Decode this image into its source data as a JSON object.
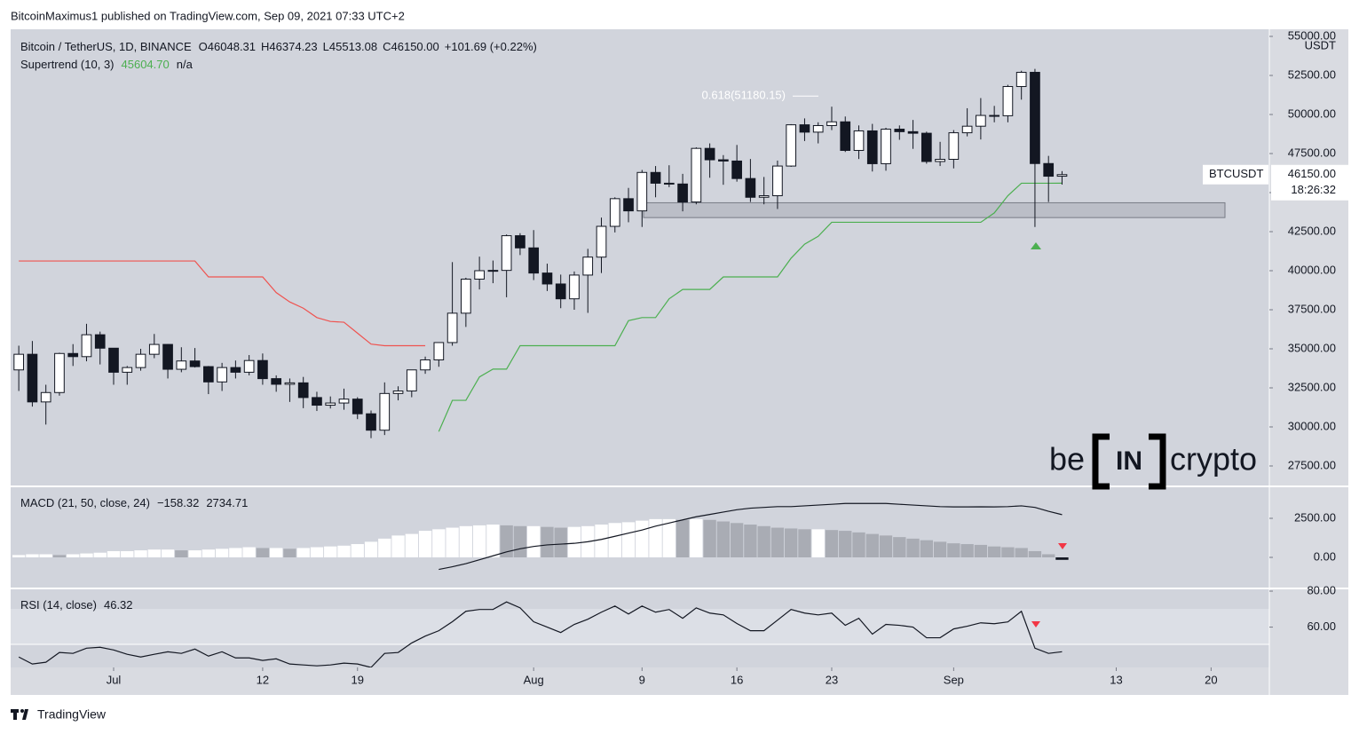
{
  "header": "BitcoinMaximus1 published on TradingView.com, Sep 09, 2021 07:33 UTC+2",
  "footer": "TradingView",
  "logo": {
    "left": "be",
    "mid": "IN",
    "right": "crypto"
  },
  "chart_data": [
    {
      "type": "candlestick",
      "title": "Bitcoin / TetherUS, 1D, BINANCE",
      "ohlc_legend": [
        {
          "label": "O",
          "value": "46048.31"
        },
        {
          "label": "H",
          "value": "46374.23"
        },
        {
          "label": "L",
          "value": "45513.08"
        },
        {
          "label": "C",
          "value": "46150.00"
        }
      ],
      "change_label": "+101.69 (+0.22%)",
      "indicator": {
        "title": "Supertrend (10, 3)",
        "value": "45604.70",
        "extra": "n/a"
      },
      "axis_unit": "USDT",
      "symbol": "BTCUSDT",
      "price_label": "46150.00",
      "countdown": "18:26:32",
      "open": [
        33650,
        34650,
        31600,
        32200,
        34700,
        34500,
        35900,
        35040,
        33500,
        33800,
        34650,
        35280,
        33690,
        34220,
        33860,
        32880,
        33800,
        33500,
        34250,
        33090,
        32730,
        32820,
        31880,
        31390,
        31530,
        31780,
        30840,
        29790,
        32140,
        32300,
        33650,
        34290,
        35400,
        37280,
        39460,
        40000,
        40020,
        42240,
        41460,
        39850,
        39150,
        38200,
        39720,
        40870,
        42840,
        44610,
        43830,
        46290,
        45600,
        45550,
        44400,
        47830,
        47100,
        47020,
        45900,
        44700,
        44800,
        46700,
        49340,
        48870,
        49290,
        49530,
        47700,
        48950,
        46850,
        49060,
        48900,
        48800,
        46990,
        47130,
        48830,
        49250,
        49940,
        49920,
        51790,
        52700,
        46860,
        46048.31
      ],
      "high": [
        35200,
        35500,
        32700,
        34750,
        35300,
        36600,
        36100,
        35050,
        33900,
        35000,
        35950,
        35300,
        35100,
        35050,
        33900,
        34100,
        34250,
        34600,
        34700,
        33300,
        33100,
        33200,
        32250,
        31950,
        32450,
        31900,
        31050,
        32850,
        32600,
        33650,
        34500,
        35400,
        40550,
        39550,
        40900,
        40650,
        42320,
        42400,
        42600,
        40450,
        39750,
        39950,
        41400,
        43400,
        44700,
        45300,
        46450,
        46700,
        46750,
        46200,
        47900,
        48150,
        47400,
        48050,
        47150,
        46000,
        47050,
        49380,
        49750,
        49500,
        50500,
        49870,
        49300,
        49400,
        49150,
        49300,
        49650,
        48900,
        48250,
        49000,
        50400,
        51050,
        50550,
        51900,
        52800,
        52920,
        47350,
        46374.23
      ],
      "low": [
        32300,
        31300,
        30150,
        32000,
        33900,
        34200,
        34000,
        32700,
        32700,
        33600,
        34400,
        33100,
        33500,
        33800,
        32100,
        32300,
        33100,
        33300,
        32700,
        32250,
        31600,
        31200,
        31020,
        31180,
        31100,
        30500,
        29280,
        29480,
        31700,
        31900,
        33400,
        33850,
        35200,
        36400,
        38800,
        39200,
        38300,
        41000,
        39400,
        38700,
        37600,
        37500,
        37300,
        39850,
        42450,
        43100,
        42800,
        44700,
        45350,
        43800,
        44250,
        45950,
        45500,
        45700,
        44400,
        44250,
        43950,
        46650,
        48300,
        48150,
        49000,
        47600,
        47150,
        46350,
        46400,
        48380,
        47800,
        46850,
        46700,
        46550,
        48600,
        48400,
        49500,
        49500,
        50950,
        42800,
        44400,
        45513.08
      ],
      "close": [
        34650,
        31600,
        32200,
        34700,
        34500,
        35900,
        35040,
        33500,
        33800,
        34650,
        35280,
        33690,
        34220,
        33860,
        32880,
        33800,
        33500,
        34250,
        33090,
        32730,
        32820,
        31880,
        31390,
        31530,
        31780,
        30840,
        29790,
        32140,
        32300,
        33650,
        34290,
        35400,
        37280,
        39460,
        40000,
        40020,
        42240,
        41460,
        39850,
        39150,
        38200,
        39720,
        40870,
        42840,
        44610,
        43830,
        46290,
        45600,
        45550,
        44400,
        47830,
        47100,
        47020,
        45900,
        44700,
        44800,
        46700,
        49340,
        48870,
        49290,
        49530,
        47700,
        48950,
        46850,
        49060,
        48900,
        48800,
        46990,
        47130,
        48830,
        49250,
        49940,
        49920,
        51790,
        52700,
        46860,
        46048.31,
        46150
      ],
      "up_color": "#ffffff",
      "down_color": "#131722",
      "supertrend": {
        "up_color": "#4caf50",
        "down_color": "#ef5350",
        "down": [
          40620,
          40620,
          40620,
          40620,
          40620,
          40620,
          40620,
          40620,
          40620,
          40620,
          40620,
          40620,
          40620,
          40620,
          39600,
          39600,
          39600,
          39600,
          39600,
          38600,
          38000,
          37600,
          37000,
          36750,
          36700,
          36000,
          35300,
          35200,
          35200,
          35200,
          35200,
          null,
          null,
          null,
          null,
          null,
          null,
          null,
          null,
          null,
          null,
          null,
          null,
          null,
          null,
          null,
          null,
          null,
          null,
          null,
          null,
          null,
          null,
          null,
          null,
          null,
          null,
          null,
          null,
          null,
          null,
          null,
          null,
          null,
          null,
          null,
          null,
          null,
          null,
          null,
          null,
          null,
          null,
          null,
          null,
          null,
          null,
          null
        ],
        "up": [
          null,
          null,
          null,
          null,
          null,
          null,
          null,
          null,
          null,
          null,
          null,
          null,
          null,
          null,
          null,
          null,
          null,
          null,
          null,
          null,
          null,
          null,
          null,
          null,
          null,
          null,
          null,
          null,
          null,
          null,
          null,
          29700,
          31700,
          31700,
          33200,
          33700,
          33700,
          35200,
          35200,
          35200,
          35200,
          35200,
          35200,
          35200,
          35200,
          36800,
          37000,
          37000,
          38200,
          38800,
          38800,
          38800,
          39600,
          39600,
          39600,
          39600,
          39600,
          40800,
          41700,
          42200,
          43100,
          43100,
          43100,
          43100,
          43100,
          43100,
          43100,
          43100,
          43100,
          43100,
          43100,
          43100,
          43700,
          44800,
          45600,
          45600,
          45600,
          45604.7
        ]
      },
      "fib": {
        "label": "0.618(51180.15)",
        "value": 51180.15
      },
      "zone": {
        "low": 43400,
        "high": 44350,
        "color": "#b2b5be"
      },
      "xlim": [
        -0.6,
        92.3
      ],
      "xticks": [
        {
          "value": 7,
          "label": "Jul"
        },
        {
          "value": 18,
          "label": "12"
        },
        {
          "value": 25,
          "label": "19"
        },
        {
          "value": 38,
          "label": "Aug"
        },
        {
          "value": 46,
          "label": "9"
        },
        {
          "value": 53,
          "label": "16"
        },
        {
          "value": 60,
          "label": "23"
        },
        {
          "value": 69,
          "label": "Sep"
        },
        {
          "value": 81,
          "label": "13"
        },
        {
          "value": 88,
          "label": "20"
        }
      ],
      "ylim": [
        26250,
        55454
      ],
      "yticks": [
        {
          "value": 27500,
          "label": "27500.00"
        },
        {
          "value": 30000,
          "label": "30000.00"
        },
        {
          "value": 32500,
          "label": "32500.00"
        },
        {
          "value": 35000,
          "label": "35000.00"
        },
        {
          "value": 37500,
          "label": "37500.00"
        },
        {
          "value": 40000,
          "label": "40000.00"
        },
        {
          "value": 42500,
          "label": "42500.00"
        },
        {
          "value": 45000,
          "label": "45000.00"
        },
        {
          "value": 47500,
          "label": "47500.00"
        },
        {
          "value": 50000,
          "label": "50000.00"
        },
        {
          "value": 52500,
          "label": "52500.00"
        },
        {
          "value": 55000,
          "label": "55000.00"
        }
      ],
      "grid": false
    },
    {
      "type": "macd",
      "title": "MACD (21, 50, close, 24)",
      "legend_values": [
        "−158.32",
        "2734.71"
      ],
      "histogram": [
        150,
        200,
        200,
        150,
        200,
        250,
        300,
        400,
        400,
        450,
        500,
        500,
        450,
        450,
        500,
        550,
        600,
        650,
        600,
        600,
        550,
        600,
        650,
        700,
        750,
        850,
        1000,
        1200,
        1400,
        1500,
        1700,
        1800,
        1900,
        2000,
        2050,
        2100,
        2050,
        2000,
        2000,
        1950,
        1900,
        1950,
        2000,
        2100,
        2200,
        2250,
        2350,
        2450,
        2450,
        2400,
        2450,
        2400,
        2300,
        2200,
        2100,
        2000,
        1900,
        1850,
        1800,
        1800,
        1750,
        1700,
        1600,
        1500,
        1400,
        1300,
        1200,
        1100,
        1000,
        900,
        850,
        800,
        700,
        650,
        600,
        400,
        200,
        -158.32
      ],
      "macd": [
        null,
        null,
        null,
        null,
        null,
        null,
        null,
        null,
        null,
        null,
        null,
        null,
        null,
        null,
        null,
        null,
        null,
        null,
        null,
        null,
        null,
        null,
        null,
        null,
        null,
        null,
        null,
        null,
        null,
        null,
        null,
        -770,
        -600,
        -400,
        -150,
        100,
        350,
        550,
        700,
        800,
        850,
        900,
        1000,
        1150,
        1350,
        1550,
        1750,
        2000,
        2200,
        2400,
        2600,
        2750,
        2900,
        3050,
        3150,
        3200,
        3250,
        3250,
        3300,
        3350,
        3400,
        3450,
        3450,
        3450,
        3450,
        3400,
        3350,
        3300,
        3250,
        3230,
        3230,
        3240,
        3230,
        3250,
        3300,
        3200,
        2950,
        2734.71
      ],
      "colors": {
        "rising": "#ffffff",
        "falling": "#a9acb4",
        "negative": "#131722",
        "line": "#131722"
      },
      "ylim": [
        -1932,
        4489
      ],
      "yticks": [
        {
          "value": 0,
          "label": "0.00"
        },
        {
          "value": 2500,
          "label": "2500.00"
        }
      ]
    },
    {
      "type": "line",
      "title": "RSI (14, close)",
      "legend_value": "46.32",
      "color": "#131722",
      "values": [
        43.4,
        39.5,
        40.5,
        45.9,
        45.4,
        48.3,
        48.8,
        47.3,
        44.9,
        43.4,
        44.9,
        46.3,
        45.4,
        47.8,
        43.9,
        46.3,
        42.9,
        42.9,
        41.5,
        42.4,
        39.5,
        39,
        38.5,
        39,
        40,
        39.5,
        37.6,
        45.4,
        45.9,
        51.2,
        55,
        58,
        63,
        68.8,
        69.8,
        69.8,
        74,
        70.7,
        63,
        60,
        57,
        61.5,
        64.4,
        68.3,
        71.7,
        67.3,
        71.7,
        68.3,
        69.8,
        64.9,
        70.7,
        67.8,
        66.8,
        62,
        58,
        58,
        63.9,
        69.8,
        67.8,
        66.8,
        67.8,
        61,
        64.9,
        56.1,
        61.5,
        61,
        60,
        54.1,
        54.1,
        59,
        60.5,
        62.4,
        61.9,
        62.9,
        68.8,
        48.3,
        45.4,
        46.32
      ],
      "ylim": [
        37.6,
        81
      ],
      "yticks": [
        {
          "value": 60,
          "label": "60.00"
        },
        {
          "value": 80,
          "label": "80.00"
        }
      ]
    }
  ]
}
